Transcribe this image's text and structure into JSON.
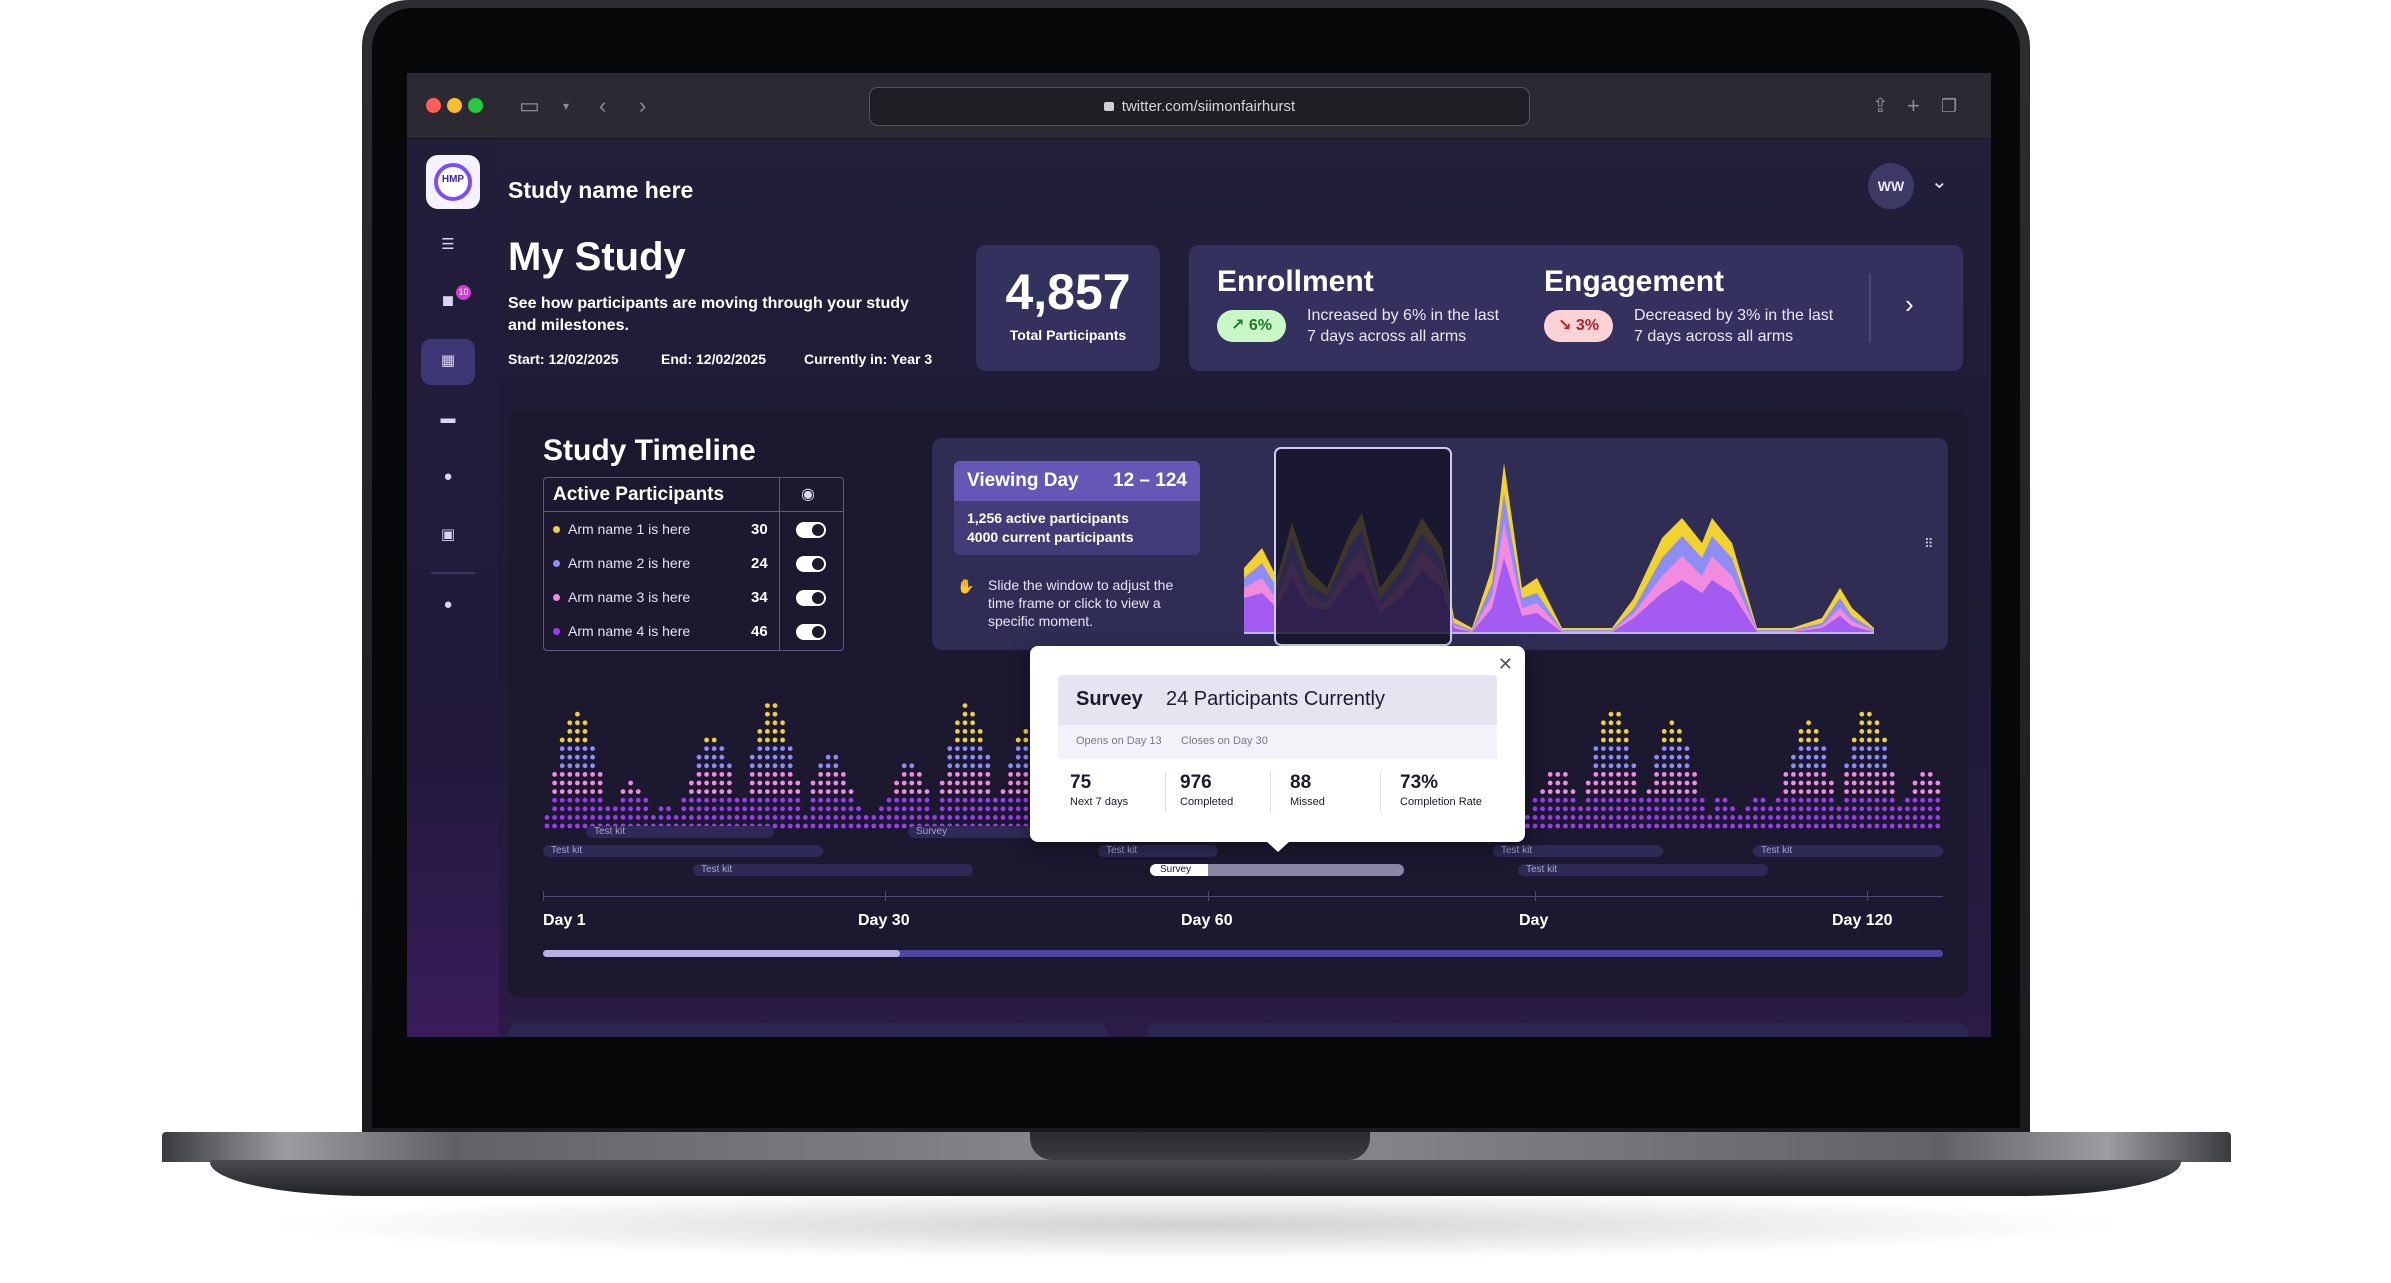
{
  "browser": {
    "url": "twitter.com/siimonfairhurst"
  },
  "header": {
    "study_name": "Study name here",
    "avatar_initials": "WW"
  },
  "sidebar": {
    "logo_text": "HMP",
    "items": [
      {
        "icon": "collapse-menu-icon"
      },
      {
        "icon": "chat-icon",
        "badge": "10"
      },
      {
        "icon": "dashboard-icon",
        "active": true
      },
      {
        "icon": "list-icon"
      },
      {
        "icon": "participants-icon"
      },
      {
        "icon": "id-card-icon"
      },
      {
        "icon": "team-icon"
      }
    ]
  },
  "hero": {
    "title": "My Study",
    "subtitle": "See how participants are moving through your study and milestones.",
    "start": "Start: 12/02/2025",
    "end": "End: 12/02/2025",
    "current": "Currently in:  Year 3"
  },
  "kpi": {
    "value": "4,857",
    "label": "Total Participants"
  },
  "enrollment": {
    "title": "Enrollment",
    "badge": "↗ 6%",
    "desc": "Increased by 6% in the last 7 days across all arms"
  },
  "engagement": {
    "title": "Engagement",
    "badge": "↘ 3%",
    "desc": "Decreased by 3% in the last 7 days across all arms"
  },
  "timeline": {
    "title": "Study Timeline",
    "active_participants": {
      "header": "Active Participants",
      "arms": [
        {
          "name": "Arm name 1 is here",
          "count": "30",
          "color": "#f2d22e"
        },
        {
          "name": "Arm name 2 is here",
          "count": "24",
          "color": "#8e8cf5"
        },
        {
          "name": "Arm name 3 is here",
          "count": "34",
          "color": "#f08be0"
        },
        {
          "name": "Arm name 4 is here",
          "count": "46",
          "color": "#9b3cf2"
        }
      ]
    },
    "viewing_day": {
      "label": "Viewing Day",
      "range": "12 – 124",
      "active": "1,256 active participants",
      "current": "4000 current participants"
    },
    "hint": "Slide the window to adjust the time frame or click to view a specific moment.",
    "tracks": [
      {
        "label": "Test kit"
      },
      {
        "label": "Survey"
      },
      {
        "label": "Test kit"
      },
      {
        "label": "Test kit"
      },
      {
        "label": "Test kit"
      },
      {
        "label": "Survey"
      },
      {
        "label": "Test kit"
      },
      {
        "label": "Test kit"
      },
      {
        "label": "Test kit"
      }
    ],
    "axis_labels": [
      "Day 1",
      "Day 30",
      "Day 60",
      "Day",
      "Day 120"
    ],
    "scroll_position": 0.255
  },
  "popup": {
    "type": "Survey",
    "title": "24 Participants Currently",
    "opens": "Opens on Day 13",
    "closes": "Closes on Day 30",
    "stats": [
      {
        "value": "75",
        "label": "Next 7 days"
      },
      {
        "value": "976",
        "label": "Completed"
      },
      {
        "value": "88",
        "label": "Missed"
      },
      {
        "value": "73%",
        "label": "Completion Rate"
      }
    ]
  }
}
